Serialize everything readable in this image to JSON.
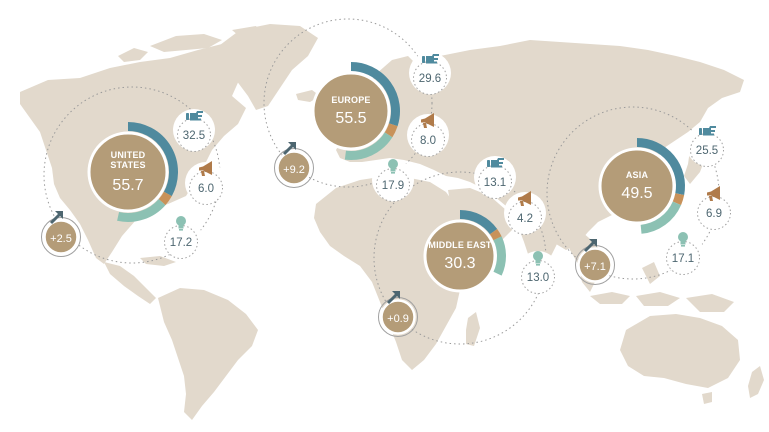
{
  "colors": {
    "land": "#e2d9cc",
    "disc": "#b49c78",
    "arc_blue": "#4f8a9e",
    "arc_orange": "#c8925a",
    "arc_teal": "#8cc1b3",
    "icon_blue": "#4f8a9e",
    "icon_orange": "#b07b4a",
    "icon_teal": "#8cc1b3",
    "text_dark": "#4d6670"
  },
  "regions": [
    {
      "id": "united-states",
      "name_lines": [
        "UNITED",
        "STATES"
      ],
      "value": "55.7",
      "growth": "+2.5",
      "hand": "32.5",
      "megaphone": "6.0",
      "bulb": "17.2",
      "arc_fractions": {
        "blue": 0.33,
        "orange": 0.035,
        "teal": 0.17
      }
    },
    {
      "id": "europe",
      "name_lines": [
        "EUROPE"
      ],
      "value": "55.5",
      "growth": "+9.2",
      "hand": "29.6",
      "megaphone": "8.0",
      "bulb": "17.9",
      "arc_fractions": {
        "blue": 0.3,
        "orange": 0.04,
        "teal": 0.18
      }
    },
    {
      "id": "middle-east",
      "name_lines": [
        "MIDDLE EAST"
      ],
      "value": "30.3",
      "growth": "+0.9",
      "hand": "13.1",
      "megaphone": "4.2",
      "bulb": "13.0",
      "arc_fractions": {
        "blue": 0.15,
        "orange": 0.03,
        "teal": 0.14
      }
    },
    {
      "id": "asia",
      "name_lines": [
        "ASIA"
      ],
      "value": "49.5",
      "growth": "+7.1",
      "hand": "25.5",
      "megaphone": "6.9",
      "bulb": "17.1",
      "arc_fractions": {
        "blue": 0.28,
        "orange": 0.035,
        "teal": 0.17
      }
    }
  ]
}
